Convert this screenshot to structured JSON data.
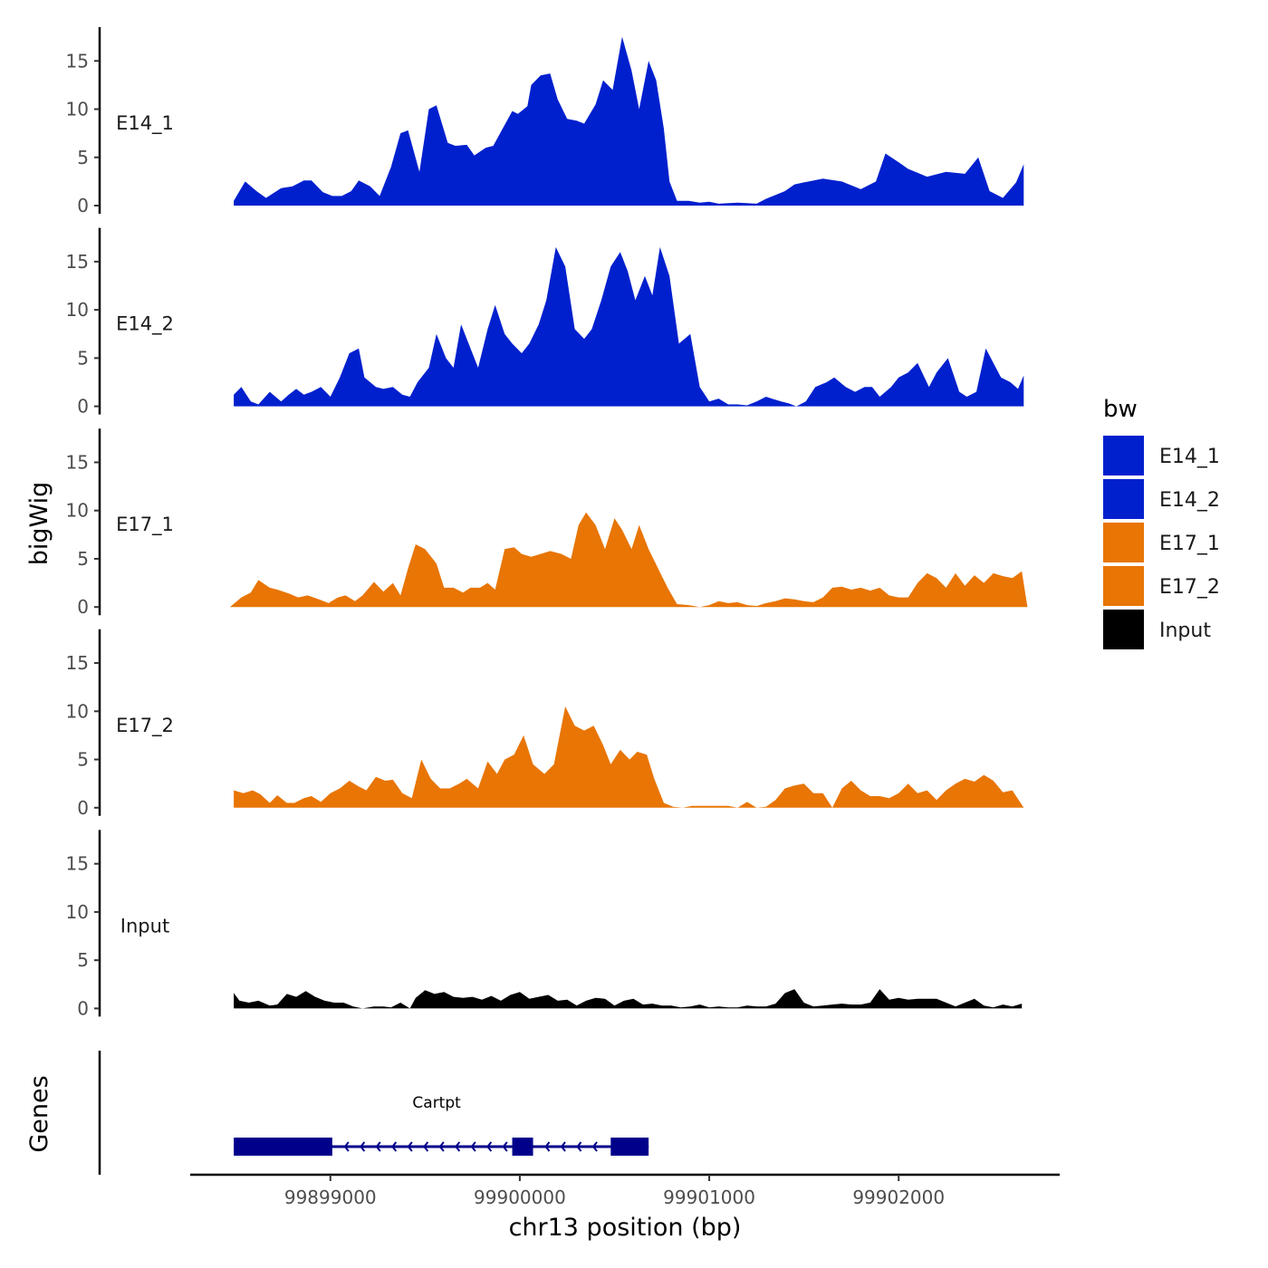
{
  "chart_data": {
    "type": "area",
    "xlabel": "chr13 position (bp)",
    "ylabel": "bigWig",
    "genes_label": "Genes",
    "xlim": [
      99898260,
      99902850
    ],
    "x_ticks": [
      99899000,
      99900000,
      99901000,
      99902000
    ],
    "x_tick_labels": [
      "99899000",
      "99900000",
      "99901000",
      "99902000"
    ],
    "ylim": [
      0,
      18.5
    ],
    "y_ticks": [
      0,
      5,
      10,
      15
    ],
    "y_tick_labels": [
      "0",
      "5",
      "10",
      "15"
    ],
    "legend": {
      "title": "bw",
      "position": "right",
      "entries": [
        {
          "label": "E14_1",
          "color": "#0020CE"
        },
        {
          "label": "E14_2",
          "color": "#0020CE"
        },
        {
          "label": "E17_1",
          "color": "#E87504"
        },
        {
          "label": "E17_2",
          "color": "#E87504"
        },
        {
          "label": "Input",
          "color": "#000000"
        }
      ]
    },
    "series": [
      {
        "name": "E14_1",
        "color": "#0020CE",
        "x": [
          99898490,
          99898550,
          99898610,
          99898660,
          99898740,
          99898800,
          99898860,
          99898900,
          99898960,
          99899010,
          99899060,
          99899110,
          99899150,
          99899210,
          99899260,
          99899320,
          99899370,
          99899410,
          99899470,
          99899520,
          99899560,
          99899620,
          99899660,
          99899720,
          99899760,
          99899820,
          99899860,
          99899910,
          99899960,
          99899990,
          99900040,
          99900060,
          99900110,
          99900160,
          99900200,
          99900250,
          99900300,
          99900340,
          99900400,
          99900440,
          99900490,
          99900540,
          99900590,
          99900630,
          99900680,
          99900720,
          99900760,
          99900790,
          99900830,
          99900890,
          99900950,
          99901000,
          99901050,
          99901150,
          99901250,
          99901300,
          99901400,
          99901450,
          99901500,
          99901600,
          99901700,
          99901800,
          99901880,
          99901930,
          99902000,
          99902050,
          99902150,
          99902250,
          99902350,
          99902420,
          99902480,
          99902550,
          99902620,
          99902660
        ],
        "values": [
          0.5,
          2.5,
          1.5,
          0.8,
          1.8,
          2.0,
          2.6,
          2.6,
          1.4,
          1.0,
          1.0,
          1.5,
          2.6,
          2.0,
          1.0,
          4.0,
          7.5,
          7.8,
          3.5,
          10.0,
          10.4,
          6.5,
          6.2,
          6.3,
          5.2,
          6.0,
          6.2,
          8.0,
          9.8,
          9.5,
          10.3,
          12.5,
          13.5,
          13.7,
          11.0,
          9.0,
          8.8,
          8.5,
          10.5,
          13.0,
          12.0,
          17.5,
          14.0,
          10.0,
          15.0,
          13.0,
          8.0,
          2.5,
          0.5,
          0.5,
          0.3,
          0.4,
          0.2,
          0.3,
          0.2,
          0.7,
          1.5,
          2.2,
          2.4,
          2.8,
          2.5,
          1.7,
          2.5,
          5.4,
          4.5,
          3.8,
          3.0,
          3.5,
          3.3,
          5.0,
          1.5,
          0.8,
          2.4,
          4.3
        ]
      },
      {
        "name": "E14_2",
        "color": "#0020CE",
        "x": [
          99898490,
          99898530,
          99898580,
          99898620,
          99898680,
          99898740,
          99898780,
          99898820,
          99898860,
          99898900,
          99898950,
          99899000,
          99899050,
          99899100,
          99899150,
          99899180,
          99899240,
          99899280,
          99899330,
          99899380,
          99899420,
          99899460,
          99899520,
          99899560,
          99899610,
          99899650,
          99899690,
          99899740,
          99899780,
          99899830,
          99899870,
          99899920,
          99899960,
          99900010,
          99900050,
          99900100,
          99900140,
          99900190,
          99900240,
          99900290,
          99900340,
          99900380,
          99900430,
          99900480,
          99900530,
          99900570,
          99900610,
          99900660,
          99900700,
          99900740,
          99900790,
          99900840,
          99900900,
          99900950,
          99901000,
          99901050,
          99901100,
          99901150,
          99901200,
          99901250,
          99901300,
          99901330,
          99901380,
          99901420,
          99901460,
          99901510,
          99901560,
          99901620,
          99901660,
          99901720,
          99901770,
          99901820,
          99901860,
          99901900,
          99901960,
          99902000,
          99902050,
          99902100,
          99902160,
          99902200,
          99902260,
          99902320,
          99902360,
          99902410,
          99902460,
          99902500,
          99902540,
          99902590,
          99902630,
          99902660
        ],
        "values": [
          1.2,
          2.0,
          0.5,
          0.2,
          1.5,
          0.5,
          1.2,
          1.8,
          1.2,
          1.5,
          2.0,
          1.0,
          3.0,
          5.5,
          6.0,
          3.0,
          2.0,
          1.8,
          2.0,
          1.2,
          1.0,
          2.5,
          4.0,
          7.5,
          5.0,
          4.0,
          8.5,
          6.0,
          4.0,
          8.0,
          10.5,
          7.5,
          6.5,
          5.5,
          6.5,
          8.5,
          11.0,
          16.5,
          14.5,
          8.0,
          7.0,
          8.0,
          11.0,
          14.5,
          16.0,
          14.0,
          11.0,
          13.5,
          11.5,
          16.5,
          13.5,
          6.5,
          7.5,
          2.0,
          0.5,
          0.8,
          0.2,
          0.2,
          0.1,
          0.5,
          1.0,
          0.8,
          0.5,
          0.3,
          0.0,
          0.5,
          2.0,
          2.5,
          3.0,
          2.0,
          1.5,
          2.0,
          2.0,
          1.0,
          2.0,
          3.0,
          3.5,
          4.5,
          2.0,
          3.5,
          5.0,
          1.5,
          1.0,
          1.5,
          6.0,
          4.5,
          3.0,
          2.5,
          1.8,
          3.2
        ]
      },
      {
        "name": "E17_1",
        "color": "#E87504",
        "x": [
          99898470,
          99898530,
          99898580,
          99898620,
          99898680,
          99898720,
          99898780,
          99898830,
          99898880,
          99898940,
          99898990,
          99899040,
          99899080,
          99899130,
          99899170,
          99899230,
          99899280,
          99899330,
          99899370,
          99899410,
          99899450,
          99899500,
          99899560,
          99899600,
          99899650,
          99899700,
          99899740,
          99899790,
          99899830,
          99899870,
          99899920,
          99899970,
          99900010,
          99900060,
          99900110,
          99900160,
          99900220,
          99900270,
          99900310,
          99900350,
          99900400,
          99900450,
          99900500,
          99900540,
          99900590,
          99900630,
          99900680,
          99900730,
          99900780,
          99900830,
          99900890,
          99900950,
          99901000,
          99901050,
          99901100,
          99901150,
          99901200,
          99901250,
          99901300,
          99901350,
          99901400,
          99901450,
          99901500,
          99901550,
          99901600,
          99901650,
          99901700,
          99901750,
          99901800,
          99901850,
          99901900,
          99901950,
          99902000,
          99902050,
          99902100,
          99902150,
          99902200,
          99902250,
          99902300,
          99902350,
          99902400,
          99902450,
          99902500,
          99902550,
          99902600,
          99902650,
          99902680
        ],
        "values": [
          0.0,
          1.0,
          1.5,
          2.8,
          2.0,
          1.8,
          1.4,
          1.0,
          1.2,
          0.8,
          0.4,
          1.0,
          1.2,
          0.6,
          1.2,
          2.6,
          1.6,
          2.5,
          1.2,
          4.0,
          6.5,
          6.0,
          4.5,
          2.0,
          2.0,
          1.5,
          2.0,
          2.0,
          2.5,
          1.8,
          6.0,
          6.2,
          5.5,
          5.2,
          5.5,
          5.8,
          5.5,
          5.0,
          8.5,
          9.8,
          8.5,
          6.0,
          9.2,
          8.0,
          6.0,
          8.5,
          6.0,
          4.0,
          2.0,
          0.3,
          0.2,
          0.0,
          0.2,
          0.6,
          0.4,
          0.5,
          0.2,
          0.1,
          0.4,
          0.6,
          0.9,
          0.8,
          0.6,
          0.5,
          1.0,
          2.0,
          2.1,
          1.8,
          2.0,
          1.7,
          2.0,
          1.2,
          1.0,
          1.0,
          2.5,
          3.5,
          3.0,
          2.0,
          3.5,
          2.2,
          3.3,
          2.5,
          3.5,
          3.2,
          3.0,
          3.7,
          0.0
        ]
      },
      {
        "name": "E17_2",
        "color": "#E87504",
        "x": [
          99898490,
          99898540,
          99898590,
          99898630,
          99898680,
          99898720,
          99898770,
          99898810,
          99898860,
          99898900,
          99898950,
          99899000,
          99899050,
          99899100,
          99899150,
          99899190,
          99899240,
          99899290,
          99899330,
          99899380,
          99899430,
          99899480,
          99899530,
          99899580,
          99899630,
          99899680,
          99899720,
          99899780,
          99899830,
          99899880,
          99899920,
          99899970,
          99900020,
          99900070,
          99900130,
          99900180,
          99900240,
          99900290,
          99900340,
          99900390,
          99900440,
          99900480,
          99900530,
          99900580,
          99900620,
          99900670,
          99900710,
          99900760,
          99900810,
          99900860,
          99900910,
          99900960,
          99901000,
          99901050,
          99901100,
          99901150,
          99901200,
          99901250,
          99901300,
          99901350,
          99901400,
          99901450,
          99901500,
          99901550,
          99901600,
          99901650,
          99901700,
          99901750,
          99901800,
          99901850,
          99901900,
          99901950,
          99902000,
          99902050,
          99902100,
          99902150,
          99902200,
          99902250,
          99902300,
          99902350,
          99902400,
          99902450,
          99902500,
          99902550,
          99902600,
          99902660
        ],
        "values": [
          1.8,
          1.5,
          1.8,
          1.4,
          0.5,
          1.3,
          0.5,
          0.5,
          1.0,
          1.2,
          0.6,
          1.5,
          2.0,
          2.8,
          2.2,
          1.8,
          3.2,
          2.8,
          2.9,
          1.5,
          1.0,
          5.0,
          3.0,
          2.0,
          2.0,
          2.5,
          3.0,
          2.0,
          4.8,
          3.5,
          5.0,
          5.5,
          7.5,
          4.5,
          3.5,
          4.5,
          10.5,
          8.5,
          8.0,
          8.5,
          6.5,
          4.5,
          6.0,
          5.0,
          5.8,
          5.5,
          3.0,
          0.5,
          0.1,
          0.0,
          0.2,
          0.2,
          0.2,
          0.2,
          0.2,
          0.0,
          0.6,
          0.0,
          0.1,
          0.8,
          2.0,
          2.3,
          2.5,
          1.5,
          1.5,
          0.0,
          2.0,
          2.8,
          1.8,
          1.2,
          1.2,
          1.0,
          1.5,
          2.5,
          1.5,
          1.8,
          0.8,
          1.8,
          2.5,
          3.0,
          2.7,
          3.4,
          2.8,
          1.6,
          1.8,
          0.0
        ]
      },
      {
        "name": "Input",
        "color": "#000000",
        "x": [
          99898490,
          99898520,
          99898570,
          99898620,
          99898680,
          99898720,
          99898770,
          99898820,
          99898870,
          99898920,
          99898970,
          99899020,
          99899070,
          99899120,
          99899170,
          99899230,
          99899280,
          99899320,
          99899370,
          99899420,
          99899450,
          99899500,
          99899550,
          99899600,
          99899650,
          99899700,
          99899750,
          99899800,
          99899850,
          99899900,
          99899950,
          99900000,
          99900050,
          99900100,
          99900150,
          99900200,
          99900250,
          99900300,
          99900350,
          99900400,
          99900450,
          99900500,
          99900550,
          99900600,
          99900650,
          99900700,
          99900750,
          99900800,
          99900850,
          99900900,
          99900950,
          99901000,
          99901050,
          99901100,
          99901150,
          99901200,
          99901250,
          99901300,
          99901350,
          99901400,
          99901450,
          99901500,
          99901550,
          99901600,
          99901650,
          99901700,
          99901750,
          99901800,
          99901850,
          99901900,
          99901950,
          99902000,
          99902050,
          99902100,
          99902150,
          99902200,
          99902250,
          99902300,
          99902350,
          99902400,
          99902450,
          99902500,
          99902550,
          99902600,
          99902650
        ],
        "values": [
          1.6,
          0.8,
          0.6,
          0.8,
          0.3,
          0.4,
          1.5,
          1.2,
          1.8,
          1.2,
          0.8,
          0.6,
          0.6,
          0.2,
          0.0,
          0.2,
          0.2,
          0.1,
          0.6,
          0.0,
          1.1,
          1.9,
          1.5,
          1.7,
          1.2,
          1.1,
          1.2,
          0.9,
          1.3,
          0.8,
          1.4,
          1.7,
          1.0,
          1.2,
          1.4,
          0.8,
          0.9,
          0.3,
          0.8,
          1.1,
          1.0,
          0.3,
          0.8,
          1.0,
          0.4,
          0.5,
          0.3,
          0.3,
          0.1,
          0.2,
          0.4,
          0.1,
          0.2,
          0.1,
          0.1,
          0.3,
          0.2,
          0.2,
          0.5,
          1.6,
          2.0,
          0.6,
          0.2,
          0.3,
          0.4,
          0.5,
          0.4,
          0.4,
          0.6,
          2.0,
          0.9,
          1.1,
          0.9,
          1.0,
          1.0,
          1.0,
          0.6,
          0.2,
          0.6,
          1.0,
          0.3,
          0.1,
          0.4,
          0.2,
          0.5
        ]
      }
    ],
    "genes": [
      {
        "name": "Cartpt",
        "color": "#00008B",
        "strand": "-",
        "start": 99898490,
        "end": 99900680,
        "exons": [
          [
            99898490,
            99899010
          ],
          [
            99899960,
            99900070
          ],
          [
            99900480,
            99900680
          ]
        ]
      }
    ]
  }
}
